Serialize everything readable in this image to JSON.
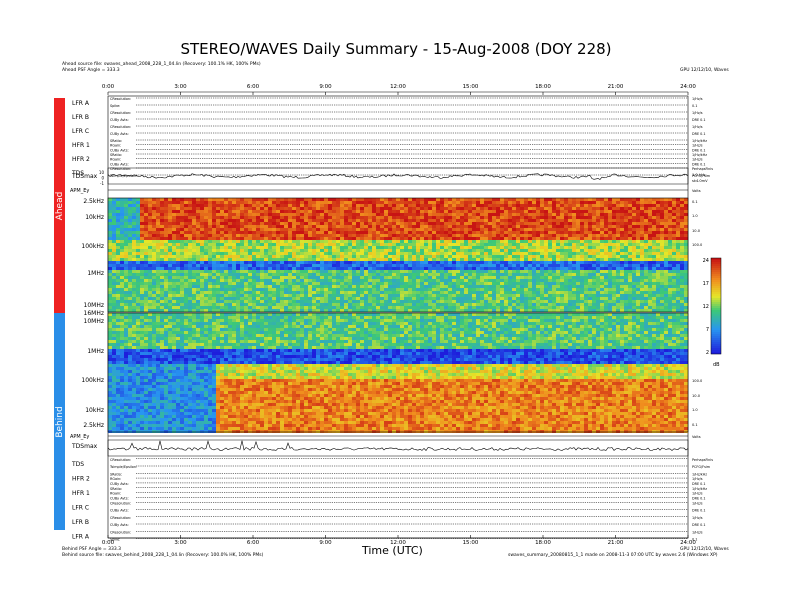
{
  "title": "STEREO/WAVES Daily Summary - 15-Aug-2008 (DOY 228)",
  "header": {
    "ahead_source": "Ahead source file: swaves_ahead_2008_228_1_04.lin (Recovery: 100.1% HK, 100% PMs)",
    "ahead_psf": "Ahead PSF Angle = 333.3",
    "version_top": "GPU 12/12/10, Waves"
  },
  "footer": {
    "behind_psf": "Behind PSF Angle = 333.3",
    "behind_source": "Behind source file: swaves_behind_2008_228_1_04.lin (Recovery: 100.0% HK, 100% PMs)",
    "version_bottom": "GPU 12/12/10, Waves",
    "generated_note": "swaves_summary_20080815_1_1 made on 2008-11-3 07:00 UTC by waves 2.6 (Windows XP)"
  },
  "spacecraft": {
    "ahead": "Ahead",
    "behind": "Behind"
  },
  "colors": {
    "ahead": "#ee2222",
    "behind": "#2a8ee8"
  },
  "time_axis": {
    "ticks": [
      "0:00",
      "3:00",
      "6:00",
      "9:00",
      "12:00",
      "15:00",
      "18:00",
      "21:00",
      "24:00"
    ],
    "label": "Time (UTC)"
  },
  "ahead_rows": [
    {
      "label": "LFR A",
      "sub": [
        "CResolution:",
        "Spike:"
      ],
      "right": [
        "1/Hz/s",
        "0.1"
      ]
    },
    {
      "label": "LFR B",
      "sub": [
        "CResolution:",
        "CUBy Avts:"
      ],
      "right": [
        "1/Hz/s",
        "DRE 0.1"
      ]
    },
    {
      "label": "LFR C",
      "sub": [
        "CResolution:",
        "CUBy Avts:"
      ],
      "right": [
        "1/Hz/s",
        "DRE 0.1"
      ]
    },
    {
      "label": "HFR 1",
      "sub": [
        "SRatio:",
        "RGain:",
        "CUBy Avts:"
      ],
      "right": [
        "1/Hz/kHz",
        "1/Hz/s",
        "DRE 0.1"
      ]
    },
    {
      "label": "HFR 2",
      "sub": [
        "SRatio:",
        "RGain:",
        "CUBy Avts:"
      ],
      "right": [
        "1/Hz/kHz",
        "1/Hz/s",
        "DRE 0.1"
      ]
    },
    {
      "label": "TDS",
      "sub": [
        "CResolution:",
        "Tsimple/Epsilon:"
      ],
      "right": [
        "PerhapsFinis",
        "PCFG/Fsim"
      ]
    }
  ],
  "behind_rows": [
    {
      "label": "TDS",
      "sub": [
        "CResolution:",
        "Tsimple/Epsilon:"
      ],
      "right": [
        "PerhapsFinis",
        "PCFG/Fsim"
      ]
    },
    {
      "label": "HFR 2",
      "sub": [
        "SRatio:",
        "RGain:",
        "CUBy Avts:"
      ],
      "right": [
        "1/Hz/kHz",
        "1/Hz/s",
        "DRE 0.1"
      ]
    },
    {
      "label": "HFR 1",
      "sub": [
        "SRatio:",
        "RGain:",
        "CUBy Avts:"
      ],
      "right": [
        "1/Hz/kHz",
        "1/Hz/s",
        "DRE 0.1"
      ]
    },
    {
      "label": "LFR C",
      "sub": [
        "CResolution:",
        "CUBy Avts:"
      ],
      "right": [
        "1/Hz/s",
        "DRE 0.1"
      ]
    },
    {
      "label": "LFR B",
      "sub": [
        "CResolution:",
        "CUBy Avts:"
      ],
      "right": [
        "1/Hz/s",
        "DRE 0.1"
      ]
    },
    {
      "label": "LFR A",
      "sub": [
        "CResolution:",
        "Spike:"
      ],
      "right": [
        "1/Hz/s",
        "0.1"
      ]
    }
  ],
  "tds": {
    "ahead_label": "TDSmax",
    "ahead_ticks": [
      "10",
      "0",
      "-1"
    ],
    "ahead_right": [
      "1.0 kHz",
      "sk4.0mV"
    ],
    "behind_label": "TDSmax",
    "apm_ahead": "APM_Ey",
    "apm_behind": "APM_Ey",
    "volts": "Volts"
  },
  "chart_data": [
    {
      "type": "heatmap",
      "name_note": "Ahead dynamic spectrum",
      "x_range_hours": [
        0,
        24
      ],
      "y_ticks": [
        "2.5kHz",
        "10kHz",
        "100kHz",
        "1MHz",
        "10MHz",
        "16MHz"
      ],
      "right_ticks": [
        "0.1",
        "1.0",
        "10.0",
        "100.0"
      ],
      "colorbar": {
        "ticks": [
          "24",
          "17",
          "12",
          "7",
          "2"
        ],
        "unit": "dB",
        "range": [
          2,
          24
        ]
      }
    },
    {
      "type": "heatmap",
      "name_note": "Behind dynamic spectrum",
      "x_range_hours": [
        0,
        24
      ],
      "y_ticks": [
        "10MHz",
        "1MHz",
        "100kHz",
        "10kHz",
        "2.5kHz"
      ],
      "right_ticks": [
        "100.0",
        "10.0",
        "1.0",
        "0.1"
      ]
    }
  ]
}
